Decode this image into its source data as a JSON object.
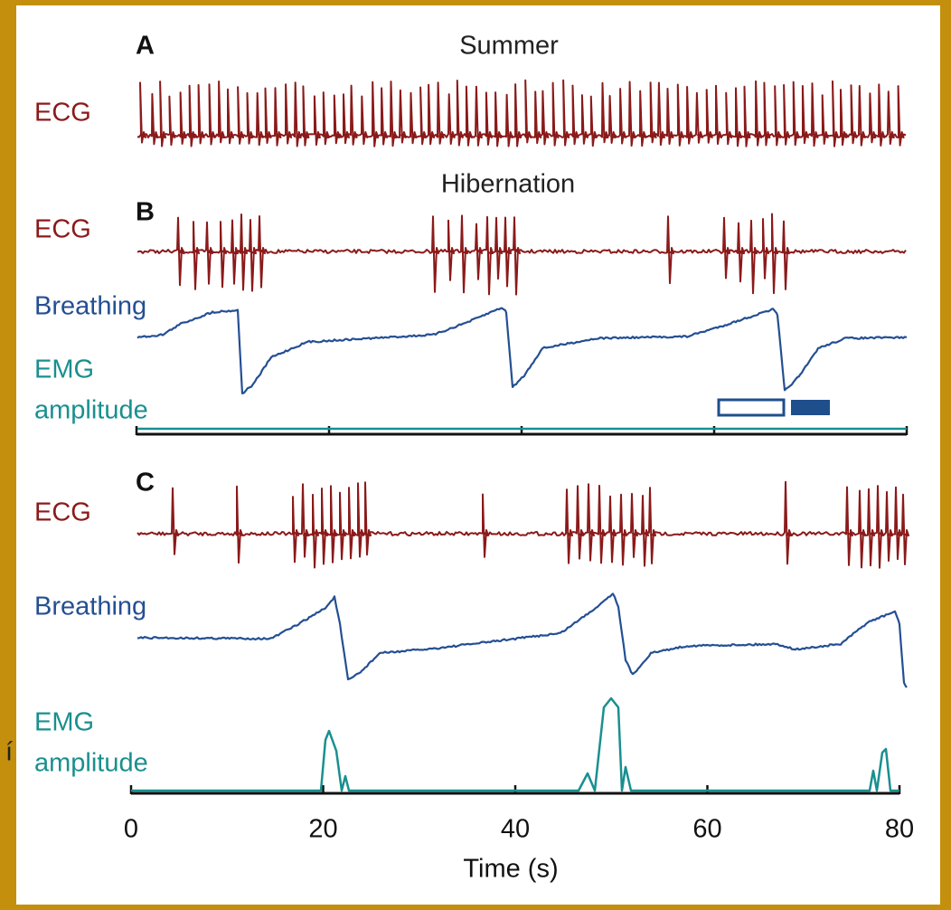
{
  "chart_data": {
    "type": "trace",
    "panels": [
      {
        "label": "A",
        "title": "Summer",
        "traces": [
          [
            "ECG"
          ]
        ]
      },
      {
        "label": "B",
        "title": "Hibernation",
        "traces": [
          [
            "ECG"
          ],
          [
            "Breathing"
          ],
          [
            "EMG",
            "amplitude"
          ]
        ]
      },
      {
        "label": "C",
        "traces": [
          [
            "ECG"
          ],
          [
            "Breathing"
          ],
          [
            "EMG",
            "amplitude"
          ]
        ]
      }
    ],
    "xlim": [
      0,
      80
    ],
    "xticks": [
      0,
      20,
      40,
      60,
      80
    ],
    "xlabel": "Time (s)",
    "stray_text": "í",
    "colors": {
      "ECG": "#8b1a1a",
      "Breathing": "#244f93",
      "EMG": "#1a8f8f"
    }
  }
}
